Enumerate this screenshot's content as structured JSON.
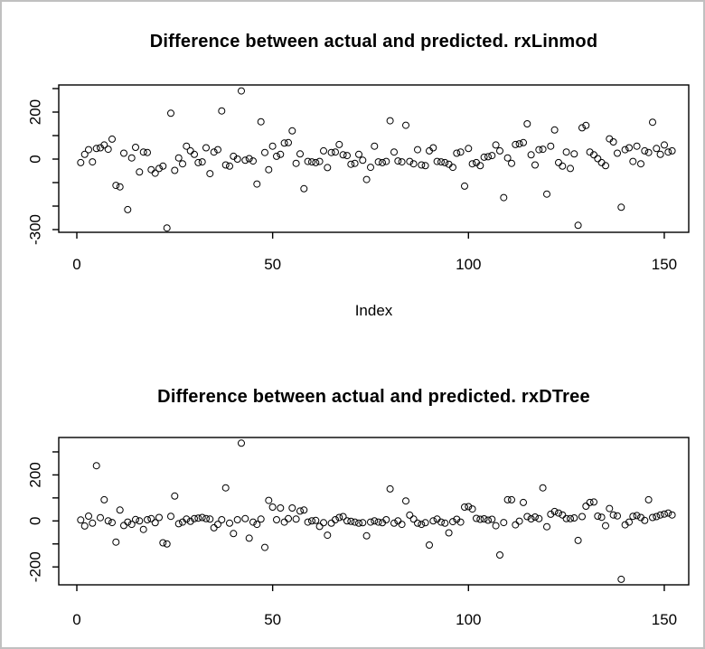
{
  "page": {
    "background_color": "#ffffff",
    "frame_border_color": "#c0c0c0",
    "plot_color": "#000000"
  },
  "chart_data": [
    {
      "type": "scatter",
      "title": "Difference between actual and predicted. rxLinmod",
      "xlabel": "Index",
      "ylabel": "",
      "marker": "open-circle",
      "grid": false,
      "legend": "none",
      "xlim": [
        -5,
        158
      ],
      "ylim": [
        -311,
        317
      ],
      "x_ticks": [
        0,
        50,
        100,
        150
      ],
      "y_ticks": [
        300,
        200,
        100,
        0,
        -100,
        -200,
        -300
      ],
      "y_tick_labels_shown": [
        200,
        0,
        -300
      ],
      "x": [
        1,
        2,
        3,
        4,
        5,
        6,
        7,
        8,
        9,
        10,
        11,
        12,
        13,
        14,
        15,
        16,
        17,
        18,
        19,
        20,
        21,
        22,
        23,
        24,
        25,
        26,
        27,
        28,
        29,
        30,
        31,
        32,
        33,
        34,
        35,
        36,
        37,
        38,
        39,
        40,
        41,
        42,
        43,
        44,
        45,
        46,
        47,
        48,
        49,
        50,
        51,
        52,
        53,
        54,
        55,
        56,
        57,
        58,
        59,
        60,
        61,
        62,
        63,
        64,
        65,
        66,
        67,
        68,
        69,
        70,
        71,
        72,
        73,
        74,
        75,
        76,
        77,
        78,
        79,
        80,
        81,
        82,
        83,
        84,
        85,
        86,
        87,
        88,
        89,
        90,
        91,
        92,
        93,
        94,
        95,
        96,
        97,
        98,
        99,
        100,
        101,
        102,
        103,
        104,
        105,
        106,
        107,
        108,
        109,
        110,
        111,
        112,
        113,
        114,
        115,
        116,
        117,
        118,
        119,
        120,
        121,
        122,
        123,
        124,
        125,
        126,
        127,
        128,
        129,
        130,
        131,
        132,
        133,
        134,
        135,
        136,
        137,
        138,
        139,
        140,
        141,
        142,
        143,
        144,
        145,
        146,
        147,
        148,
        149,
        150,
        151,
        152
      ],
      "y": [
        -15,
        20,
        40,
        -12,
        45,
        48,
        60,
        42,
        85,
        -112,
        -118,
        25,
        -215,
        5,
        50,
        -55,
        30,
        28,
        -45,
        -60,
        -40,
        -30,
        -293,
        195,
        -48,
        5,
        -20,
        55,
        35,
        20,
        -15,
        -12,
        48,
        -62,
        30,
        40,
        205,
        -25,
        -30,
        12,
        0,
        290,
        -5,
        2,
        -8,
        -106,
        159,
        28,
        -45,
        55,
        12,
        20,
        68,
        70,
        120,
        -18,
        22,
        -126,
        -10,
        -12,
        -15,
        -10,
        35,
        -36,
        28,
        30,
        62,
        18,
        15,
        -22,
        -18,
        20,
        -5,
        -87,
        -35,
        55,
        -12,
        -15,
        -10,
        163,
        30,
        -8,
        -12,
        144,
        -10,
        -20,
        40,
        -25,
        -28,
        35,
        48,
        -10,
        -12,
        -15,
        -22,
        -35,
        25,
        30,
        -115,
        45,
        -20,
        -15,
        -28,
        8,
        10,
        15,
        60,
        35,
        -164,
        5,
        -18,
        62,
        65,
        70,
        150,
        18,
        -25,
        40,
        42,
        -149,
        55,
        124,
        -15,
        -30,
        30,
        -40,
        22,
        -282,
        133,
        143,
        30,
        18,
        2,
        -15,
        -28,
        86,
        73,
        25,
        -205,
        40,
        48,
        -10,
        55,
        -20,
        35,
        28,
        157,
        45,
        20,
        60,
        30,
        35
      ]
    },
    {
      "type": "scatter",
      "title": "Difference between actual and predicted. rxDTree",
      "xlabel": "",
      "ylabel": "",
      "marker": "open-circle",
      "grid": false,
      "legend": "none",
      "xlim": [
        -5,
        158
      ],
      "ylim": [
        -278,
        363
      ],
      "x_ticks": [
        0,
        50,
        100,
        150
      ],
      "y_ticks": [
        300,
        200,
        100,
        0,
        -100,
        -200
      ],
      "y_tick_labels_shown": [
        200,
        0,
        -200
      ],
      "x": [
        1,
        2,
        3,
        4,
        5,
        6,
        7,
        8,
        9,
        10,
        11,
        12,
        13,
        14,
        15,
        16,
        17,
        18,
        19,
        20,
        21,
        22,
        23,
        24,
        25,
        26,
        27,
        28,
        29,
        30,
        31,
        32,
        33,
        34,
        35,
        36,
        37,
        38,
        39,
        40,
        41,
        42,
        43,
        44,
        45,
        46,
        47,
        48,
        49,
        50,
        51,
        52,
        53,
        54,
        55,
        56,
        57,
        58,
        59,
        60,
        61,
        62,
        63,
        64,
        65,
        66,
        67,
        68,
        69,
        70,
        71,
        72,
        73,
        74,
        75,
        76,
        77,
        78,
        79,
        80,
        81,
        82,
        83,
        84,
        85,
        86,
        87,
        88,
        89,
        90,
        91,
        92,
        93,
        94,
        95,
        96,
        97,
        98,
        99,
        100,
        101,
        102,
        103,
        104,
        105,
        106,
        107,
        108,
        109,
        110,
        111,
        112,
        113,
        114,
        115,
        116,
        117,
        118,
        119,
        120,
        121,
        122,
        123,
        124,
        125,
        126,
        127,
        128,
        129,
        130,
        131,
        132,
        133,
        134,
        135,
        136,
        137,
        138,
        139,
        140,
        141,
        142,
        143,
        144,
        145,
        146,
        147,
        148,
        149,
        150,
        151,
        152
      ],
      "y": [
        4,
        -22,
        21,
        -10,
        240,
        14,
        92,
        0,
        -7,
        -92,
        47,
        -20,
        -5,
        -15,
        6,
        0,
        -37,
        5,
        10,
        -8,
        15,
        -95,
        -100,
        20,
        108,
        -12,
        -5,
        8,
        -2,
        10,
        12,
        15,
        10,
        8,
        -30,
        -15,
        5,
        144,
        -10,
        -55,
        5,
        338,
        10,
        -75,
        -5,
        -15,
        8,
        -115,
        89,
        60,
        5,
        56,
        -5,
        10,
        56,
        8,
        43,
        47,
        -5,
        0,
        2,
        -24,
        -8,
        -62,
        -10,
        5,
        15,
        19,
        0,
        -2,
        -5,
        -10,
        -8,
        -65,
        -5,
        0,
        -5,
        -8,
        5,
        139,
        -10,
        0,
        -15,
        87,
        25,
        8,
        -10,
        -15,
        -8,
        -105,
        0,
        8,
        -5,
        -10,
        -52,
        -3,
        7,
        -5,
        60,
        62,
        52,
        11,
        7,
        9,
        3,
        7,
        -21,
        -148,
        -7,
        92,
        92,
        -17,
        -1,
        80,
        19,
        9,
        17,
        10,
        144,
        -25,
        29,
        41,
        34,
        26,
        10,
        10,
        13,
        -85,
        19,
        64,
        80,
        82,
        21,
        16,
        -21,
        54,
        26,
        22,
        -254,
        -17,
        -5,
        20,
        23,
        15,
        2,
        92,
        15,
        19,
        26,
        30,
        34,
        26
      ]
    }
  ]
}
